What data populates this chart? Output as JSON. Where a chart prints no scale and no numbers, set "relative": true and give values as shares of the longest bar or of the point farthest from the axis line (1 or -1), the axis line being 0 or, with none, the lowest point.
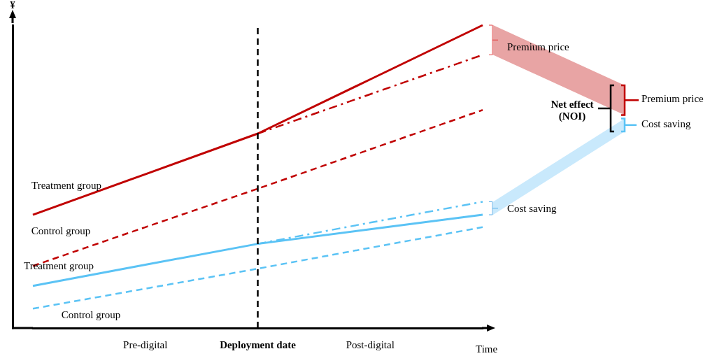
{
  "chart_data": {
    "type": "line",
    "relative": true,
    "xlabel": "Time",
    "ylabel": "¥",
    "categories": [
      null,
      "Pre-digital",
      "Deployment date",
      "Post-digital",
      null
    ],
    "series": [
      {
        "name": "Treatment group",
        "color": "#c00000",
        "line_style": "solid",
        "values": [
          0.374,
          0.508,
          0.642,
          0.821,
          1
        ]
      },
      {
        "color": "#c00000",
        "line_style": "dashdot",
        "values": [
          null,
          null,
          0.642,
          0.772,
          0.902
        ]
      },
      {
        "name": "Control group",
        "color": "#c00000",
        "line_style": "dashed",
        "values": [
          0.205,
          0.333,
          0.46,
          0.59,
          0.72
        ]
      },
      {
        "name": "Treatment group",
        "color": "#5bc3f5",
        "line_style": "solid",
        "values": [
          0.139,
          0.209,
          0.278,
          0.326,
          0.374
        ]
      },
      {
        "color": "#5bc3f5",
        "line_style": "dashdot",
        "values": [
          null,
          null,
          0.278,
          0.348,
          0.417
        ]
      },
      {
        "name": "Control group",
        "color": "#5bc3f5",
        "line_style": "dashed",
        "values": [
          0.064,
          0.13,
          0.196,
          0.265,
          0.333
        ]
      }
    ],
    "ref_lines": [
      {
        "axis": "x",
        "value": "Deployment date",
        "color": "#000000",
        "line_style": "dashed"
      }
    ],
    "annotations": [
      "Premium price",
      "Cost saving",
      "Net effect\n(NOI)",
      "Premium price",
      "Cost saving"
    ]
  }
}
